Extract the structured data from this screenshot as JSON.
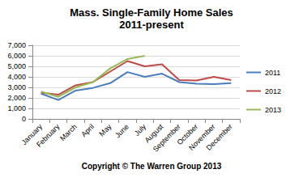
{
  "chart_data": {
    "type": "line",
    "title": "Mass. Single-Family Home Sales",
    "subtitle": "2011-present",
    "annotations": [
      "Copyright © The Warren Group 2013"
    ],
    "categories": [
      "January",
      "February",
      "March",
      "April",
      "May",
      "June",
      "July",
      "August",
      "September",
      "October",
      "November",
      "December"
    ],
    "series": [
      {
        "name": "2011",
        "color": "#4a7ebb",
        "values": [
          2400,
          1800,
          2700,
          2950,
          3400,
          4450,
          4000,
          4300,
          3500,
          3350,
          3300,
          3400
        ]
      },
      {
        "name": "2012",
        "color": "#be4b48",
        "values": [
          2500,
          2300,
          3200,
          3500,
          4500,
          5500,
          5000,
          5200,
          3700,
          3650,
          4000,
          3700
        ]
      },
      {
        "name": "2013",
        "color": "#98b954",
        "values": [
          2600,
          2100,
          3000,
          3500,
          4800,
          5700,
          6000,
          null,
          null,
          null,
          null,
          null
        ]
      }
    ],
    "ylim": [
      0,
      7000
    ],
    "yticks": [
      0,
      {
        "value": 1000,
        "label": "1,000"
      },
      {
        "value": 2000,
        "label": "2,000"
      },
      {
        "value": 3000,
        "label": "3,000"
      },
      {
        "value": 4000,
        "label": "4,000"
      },
      {
        "value": 5000,
        "label": "5,000"
      },
      {
        "value": 6000,
        "label": "6,000"
      },
      {
        "value": 7000,
        "label": "7,000"
      }
    ],
    "grid": true,
    "legend": "right",
    "marker": "none"
  }
}
